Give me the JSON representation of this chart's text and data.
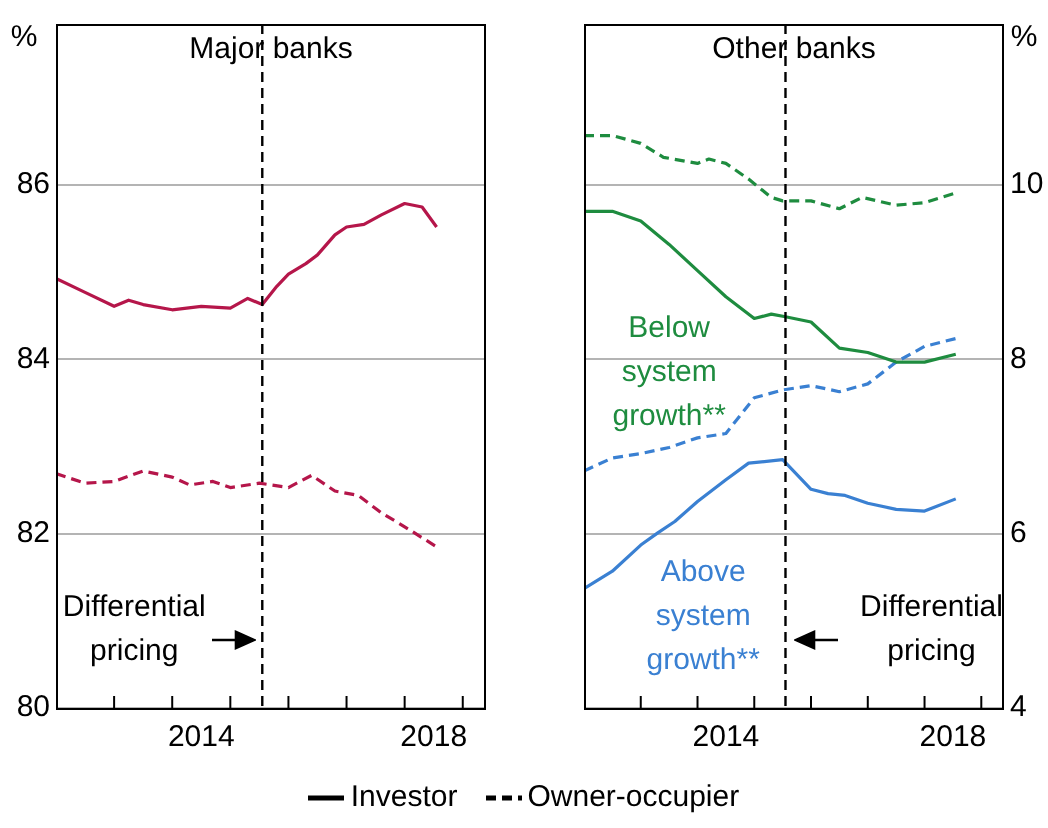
{
  "chart_data": [
    {
      "type": "line",
      "title": "Major banks",
      "ylabel": "%",
      "xlim": [
        2012,
        2019.4
      ],
      "ylim": [
        80,
        87.85
      ],
      "xticks": [
        {
          "value": 2013,
          "label": null
        },
        {
          "value": 2014,
          "label": null
        },
        {
          "value": 2014.5,
          "label": "2014"
        },
        {
          "value": 2015,
          "label": null
        },
        {
          "value": 2016,
          "label": null
        },
        {
          "value": 2017,
          "label": null
        },
        {
          "value": 2018,
          "label": null
        },
        {
          "value": 2018.5,
          "label": "2018"
        },
        {
          "value": 2019,
          "label": null
        }
      ],
      "yticks": [
        80,
        82,
        84,
        86
      ],
      "grid": "y",
      "ref_lines": [
        {
          "axis": "x",
          "value": 2015.55,
          "label": "Differential pricing",
          "color": "#000000",
          "line_style": "dashed"
        }
      ],
      "series": [
        {
          "color": "#b5164a",
          "line_style": "solid",
          "x": [
            2012,
            2012.5,
            2013,
            2013.25,
            2013.5,
            2014,
            2014.5,
            2015,
            2015.3,
            2015.55,
            2015.8,
            2016,
            2016.3,
            2016.5,
            2016.8,
            2017,
            2017.3,
            2017.6,
            2018,
            2018.3,
            2018.55
          ],
          "values": [
            84.93,
            84.77,
            84.61,
            84.68,
            84.63,
            84.57,
            84.61,
            84.59,
            84.7,
            84.63,
            84.84,
            84.98,
            85.1,
            85.2,
            85.43,
            85.52,
            85.55,
            85.66,
            85.79,
            85.75,
            85.52
          ]
        },
        {
          "color": "#b5164a",
          "line_style": "dashed",
          "x": [
            2012,
            2012.5,
            2013,
            2013.5,
            2014,
            2014.3,
            2014.7,
            2015,
            2015.5,
            2016,
            2016.4,
            2016.8,
            2017.2,
            2017.6,
            2018,
            2018.55
          ],
          "values": [
            82.69,
            82.58,
            82.6,
            82.72,
            82.65,
            82.56,
            82.6,
            82.53,
            82.58,
            82.53,
            82.67,
            82.49,
            82.44,
            82.24,
            82.08,
            81.85
          ]
        }
      ]
    },
    {
      "type": "line",
      "title": "Other banks",
      "ylabel": "%",
      "xlim": [
        2012,
        2019.4
      ],
      "ylim": [
        4,
        11.85
      ],
      "xticks": [
        {
          "value": 2013,
          "label": null
        },
        {
          "value": 2014,
          "label": null
        },
        {
          "value": 2014.5,
          "label": "2014"
        },
        {
          "value": 2015,
          "label": null
        },
        {
          "value": 2016,
          "label": null
        },
        {
          "value": 2017,
          "label": null
        },
        {
          "value": 2018,
          "label": null
        },
        {
          "value": 2018.5,
          "label": "2018"
        },
        {
          "value": 2019,
          "label": null
        }
      ],
      "yticks": [
        4,
        6,
        8,
        10
      ],
      "grid": "y",
      "ref_lines": [
        {
          "axis": "x",
          "value": 2015.55,
          "label": "Differential pricing",
          "color": "#000000",
          "line_style": "dashed"
        }
      ],
      "annotations": [
        "Investor",
        "Owner-occupier",
        {
          "text": "Below system growth**",
          "x": 2013.5,
          "y": 9.32
        },
        {
          "text": "Above system growth**",
          "x": 2014.1,
          "y": 6.42
        }
      ],
      "series": [
        {
          "color": "#1e8c3f",
          "line_style": "solid",
          "x": [
            2012,
            2012.5,
            2013,
            2013.5,
            2014,
            2014.5,
            2015,
            2015.3,
            2015.55,
            2016,
            2016.5,
            2017,
            2017.5,
            2018,
            2018.55
          ],
          "values": [
            9.7,
            9.7,
            9.59,
            9.32,
            9.02,
            8.72,
            8.47,
            8.52,
            8.49,
            8.43,
            8.13,
            8.08,
            7.97,
            7.97,
            8.06
          ]
        },
        {
          "color": "#1e8c3f",
          "line_style": "dashed",
          "x": [
            2012,
            2012.5,
            2013,
            2013.4,
            2014,
            2014.2,
            2014.5,
            2014.9,
            2015.3,
            2015.5,
            2016,
            2016.5,
            2016.9,
            2017.5,
            2018,
            2018.55
          ],
          "values": [
            10.57,
            10.57,
            10.48,
            10.32,
            10.25,
            10.3,
            10.25,
            10.07,
            9.86,
            9.82,
            9.82,
            9.73,
            9.86,
            9.77,
            9.8,
            9.91
          ]
        },
        {
          "color": "#3a80d2",
          "line_style": "solid",
          "x": [
            2012,
            2012.5,
            2013,
            2013.3,
            2013.6,
            2014,
            2014.5,
            2014.9,
            2015.5,
            2016,
            2016.3,
            2016.6,
            2017,
            2017.5,
            2018,
            2018.55
          ],
          "values": [
            5.37,
            5.57,
            5.87,
            6.01,
            6.14,
            6.37,
            6.62,
            6.81,
            6.85,
            6.51,
            6.46,
            6.44,
            6.35,
            6.28,
            6.26,
            6.4
          ]
        },
        {
          "color": "#3a80d2",
          "line_style": "dashed",
          "x": [
            2012,
            2012.5,
            2013,
            2013.5,
            2014,
            2014.5,
            2015,
            2015.5,
            2016,
            2016.5,
            2017,
            2017.5,
            2018,
            2018.55
          ],
          "values": [
            6.72,
            6.87,
            6.92,
            6.99,
            7.1,
            7.15,
            7.56,
            7.65,
            7.7,
            7.63,
            7.72,
            7.97,
            8.15,
            8.24
          ]
        }
      ]
    }
  ]
}
